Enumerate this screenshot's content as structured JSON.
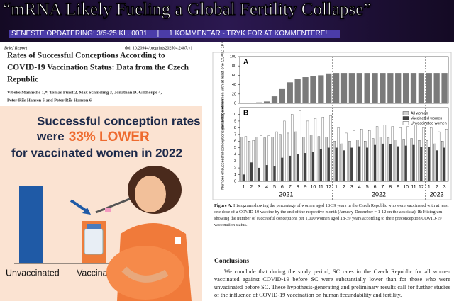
{
  "header": {
    "title": "“mRNA Likely Fueling a Global Fertility Collapse”",
    "updated": "SENESTE OPDATERING: 3/5-25 KL. 0031",
    "separator": "|",
    "comments": "1 KOMMENTAR - TRYK FOR AT KOMMENTERE!"
  },
  "paper": {
    "label": "Brief Report",
    "doi": "doi: 10.20944/preprints202504.2487.v1",
    "title": [
      "Rates of Successful Conceptions According to",
      "COVID-19 Vaccination Status: Data from the Czech",
      "Republic"
    ],
    "authors": [
      "Vibeke Manniche 1,*, Tomáš Fürst 2, Max Schmeling 3, Jonathan D. Gilthorpe 4,",
      "Peter Riis Hansen 5 and Peter Riis Hansen 6"
    ]
  },
  "infographic": {
    "line1": "Successful conception rates",
    "line2": "were",
    "highlight": "33% LOWER",
    "line3": "for vaccinated women in 2022",
    "bar_labels": [
      "Unvaccinated",
      "Vaccinated"
    ]
  },
  "figure": {
    "months": [
      "1",
      "2",
      "3",
      "4",
      "5",
      "6",
      "7",
      "8",
      "9",
      "10",
      "11",
      "12",
      "1",
      "2",
      "3",
      "4",
      "5",
      "6",
      "7",
      "8",
      "9",
      "10",
      "11",
      "12",
      "1",
      "2",
      "3"
    ],
    "years": [
      "2021",
      "2022",
      "2023"
    ],
    "panel_a": {
      "letter": "A",
      "ylabel": "Percentage of women with at least one COVID-19 vaccine",
      "ylim": [
        0,
        100
      ],
      "yticks": [
        0,
        20,
        40,
        60,
        80,
        100
      ],
      "color": "#7a7a7a",
      "values": [
        0.5,
        1,
        2,
        4,
        15,
        32,
        45,
        52,
        56,
        58,
        60,
        64,
        65,
        65,
        65,
        65,
        65,
        65,
        65,
        65,
        65,
        65,
        65,
        65,
        65,
        65,
        65
      ]
    },
    "panel_b": {
      "letter": "B",
      "ylabel": "Number of successful conceptions per 1,000 women",
      "ylim": [
        0,
        11
      ],
      "yticks": [
        0,
        1,
        2,
        3,
        4,
        5,
        6,
        7,
        8,
        9,
        10
      ],
      "series": [
        {
          "name": "All women",
          "color": "#cfcfcf",
          "values": [
            6.6,
            6.0,
            6.6,
            6.5,
            6.6,
            7.0,
            7.2,
            7.4,
            6.6,
            6.9,
            6.7,
            6.6,
            6.0,
            5.6,
            6.0,
            6.2,
            6.0,
            6.4,
            6.6,
            6.5,
            6.2,
            6.3,
            6.4,
            6.1,
            6.1,
            5.6,
            6.0
          ]
        },
        {
          "name": "Vaccinated women",
          "color": "#444444",
          "values": [
            1.0,
            2.8,
            2.0,
            2.4,
            2.2,
            3.5,
            3.8,
            4.0,
            4.2,
            4.4,
            4.8,
            5.0,
            5.0,
            4.6,
            5.0,
            5.2,
            5.0,
            5.4,
            5.6,
            5.5,
            5.2,
            5.3,
            5.4,
            5.1,
            5.1,
            4.6,
            5.0
          ]
        },
        {
          "name": "Unvaccinated women",
          "color": "#ffffff",
          "values": [
            6.7,
            6.1,
            6.8,
            6.8,
            7.4,
            9.0,
            10.0,
            10.5,
            9.0,
            9.4,
            9.6,
            9.8,
            8.0,
            7.2,
            7.6,
            7.8,
            7.6,
            8.2,
            8.4,
            8.2,
            8.0,
            8.2,
            8.4,
            8.0,
            8.0,
            7.4,
            7.8
          ]
        }
      ]
    },
    "caption_a": "Figure A:",
    "caption_a_text": " Histogram showing the percentage of women aged 18-39 years in the Czech Republic who were vaccinated with at least one dose of a COVID-19 vaccine by the end of the respective month (January-December = 1-12 on the abscissa). ",
    "caption_b": "B:",
    "caption_b_text": " Histogram showing the number of successful conceptions per 1,000 women aged 18-39 years according to their preconception COVID-19 vaccination status."
  },
  "conclusions": {
    "heading": "Conclusions",
    "text": "We conclude that during the study period, SC rates in the Czech Republic for all women vaccinated against COVID-19 before SC were substantially lower than for those who were unvacinated before SC. These hypothesis-generating and preliminary results call for further studies of the influence of COVID-19 vaccination on human fecundability and fertility."
  }
}
